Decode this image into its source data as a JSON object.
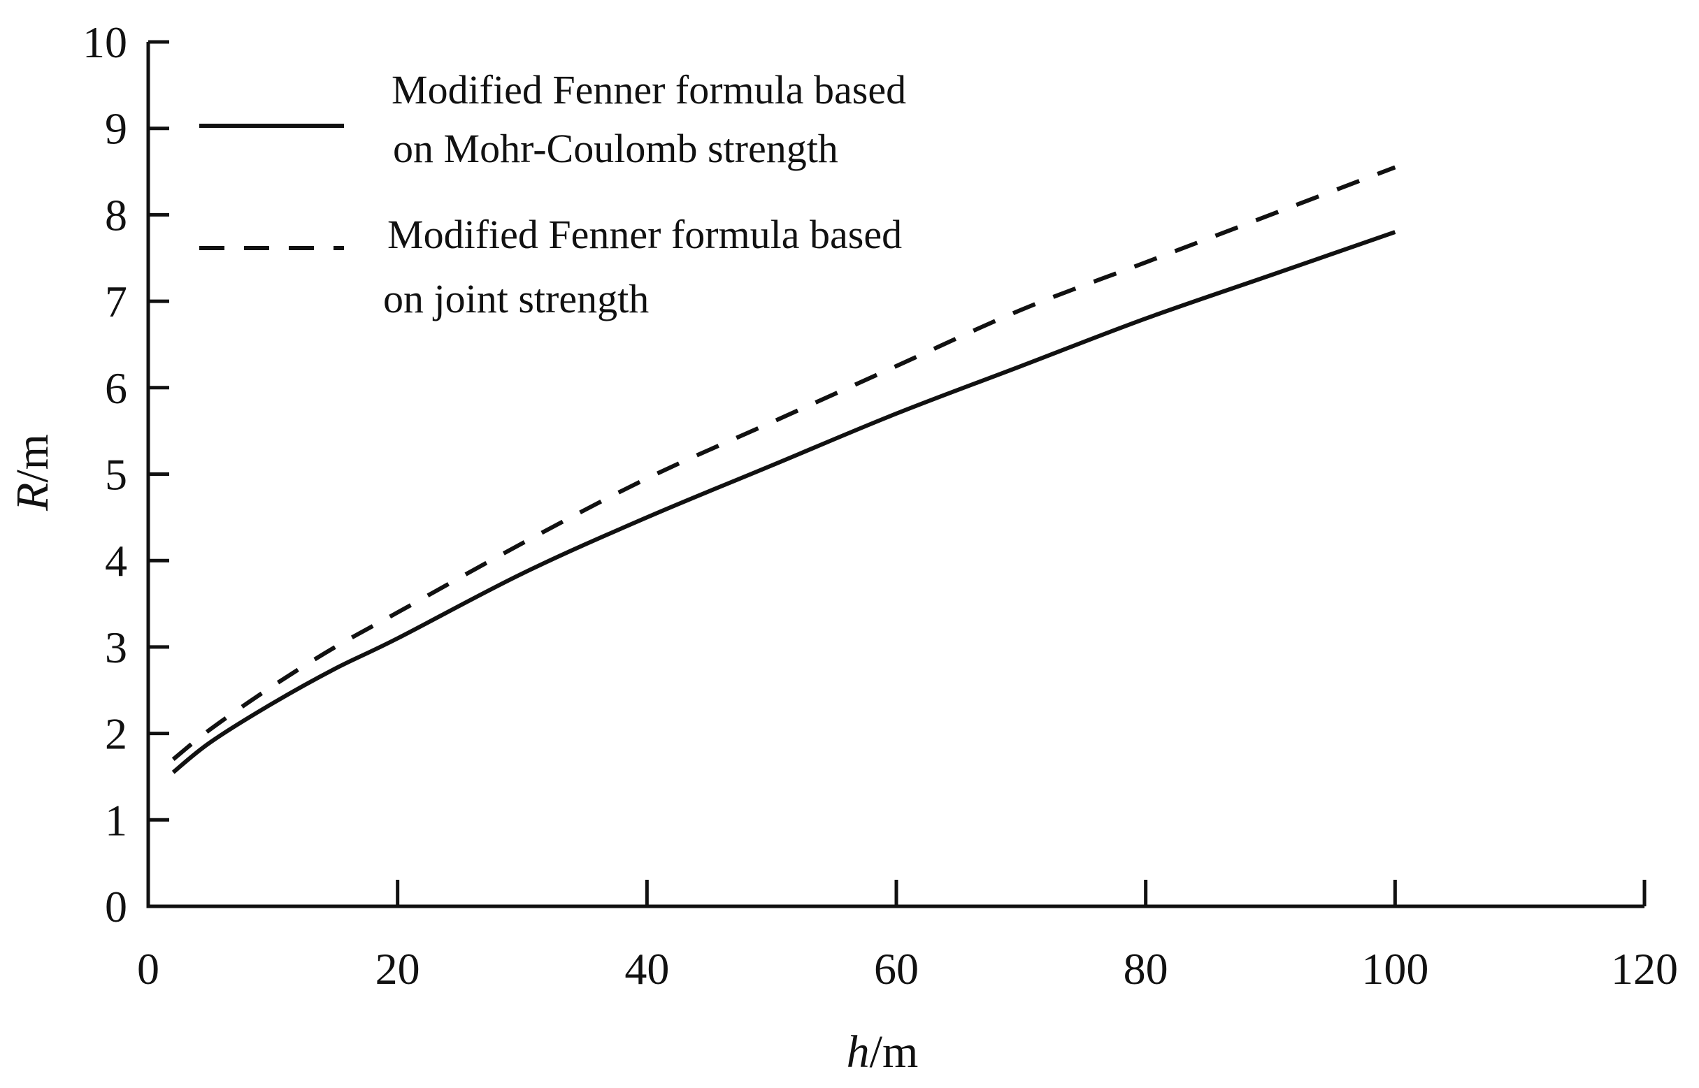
{
  "chart_data": {
    "type": "line",
    "title": "",
    "xlabel": {
      "var": "h",
      "unit": "/m"
    },
    "ylabel": {
      "var": "R",
      "unit": "/m"
    },
    "xlim": [
      0,
      120
    ],
    "ylim": [
      0,
      10
    ],
    "xticks": [
      "0",
      "20",
      "40",
      "60",
      "80",
      "100",
      "120"
    ],
    "yticks": [
      "0",
      "1",
      "2",
      "3",
      "4",
      "5",
      "6",
      "7",
      "8",
      "9",
      "10"
    ],
    "grid": false,
    "legend_position": "top-left",
    "series": [
      {
        "name_lines": [
          "Modified Fenner formula based",
          "on Mohr-Coulomb strength"
        ],
        "style": "solid",
        "color": "#111111",
        "x": [
          2,
          5,
          10,
          15,
          20,
          30,
          40,
          50,
          60,
          70,
          80,
          90,
          100
        ],
        "y": [
          1.55,
          1.9,
          2.35,
          2.75,
          3.1,
          3.85,
          4.5,
          5.1,
          5.7,
          6.25,
          6.8,
          7.3,
          7.8
        ]
      },
      {
        "name_lines": [
          "Modified Fenner formula based",
          "on joint strength"
        ],
        "style": "dashed",
        "color": "#111111",
        "x": [
          2,
          5,
          10,
          15,
          20,
          30,
          40,
          50,
          60,
          70,
          80,
          90,
          100
        ],
        "y": [
          1.7,
          2.05,
          2.55,
          3.0,
          3.4,
          4.2,
          4.95,
          5.6,
          6.25,
          6.9,
          7.45,
          8.0,
          8.55
        ]
      }
    ]
  }
}
